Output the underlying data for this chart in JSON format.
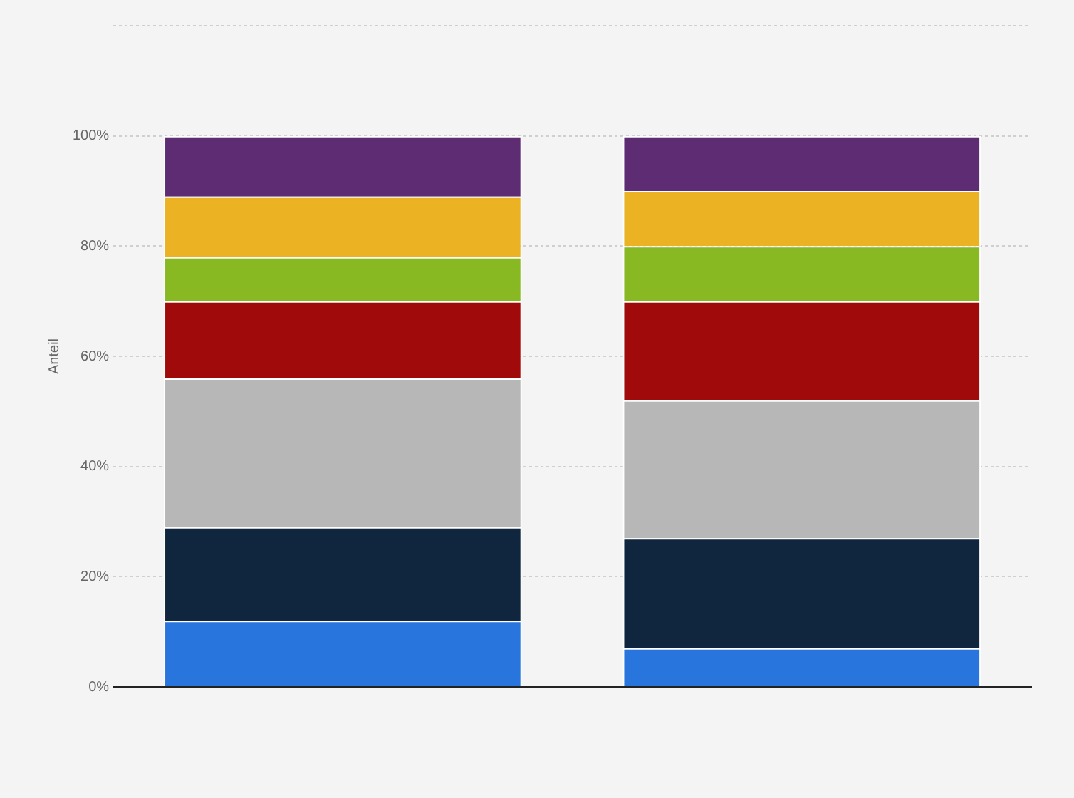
{
  "chart_data": {
    "type": "bar",
    "stacked": true,
    "ylabel": "Anteil",
    "categories": [
      null,
      null
    ],
    "series": [
      {
        "color": "#2876dd",
        "values": [
          12,
          7
        ]
      },
      {
        "color": "#10263e",
        "values": [
          17,
          20
        ]
      },
      {
        "color": "#b7b7b7",
        "values": [
          27,
          25
        ]
      },
      {
        "color": "#a10a0a",
        "values": [
          14,
          18
        ]
      },
      {
        "color": "#88b923",
        "values": [
          8,
          10
        ]
      },
      {
        "color": "#ebb323",
        "values": [
          11,
          10
        ]
      },
      {
        "color": "#5e2c73",
        "values": [
          11,
          10
        ]
      }
    ],
    "ylim": [
      0,
      120
    ],
    "yticks": [
      {
        "value": 0,
        "label": "0%"
      },
      {
        "value": 20,
        "label": "20%"
      },
      {
        "value": 40,
        "label": "40%"
      },
      {
        "value": 60,
        "label": "60%"
      },
      {
        "value": 80,
        "label": "80%"
      },
      {
        "value": 100,
        "label": "100%"
      },
      {
        "value": 120,
        "label": null
      }
    ],
    "grid": "y"
  }
}
